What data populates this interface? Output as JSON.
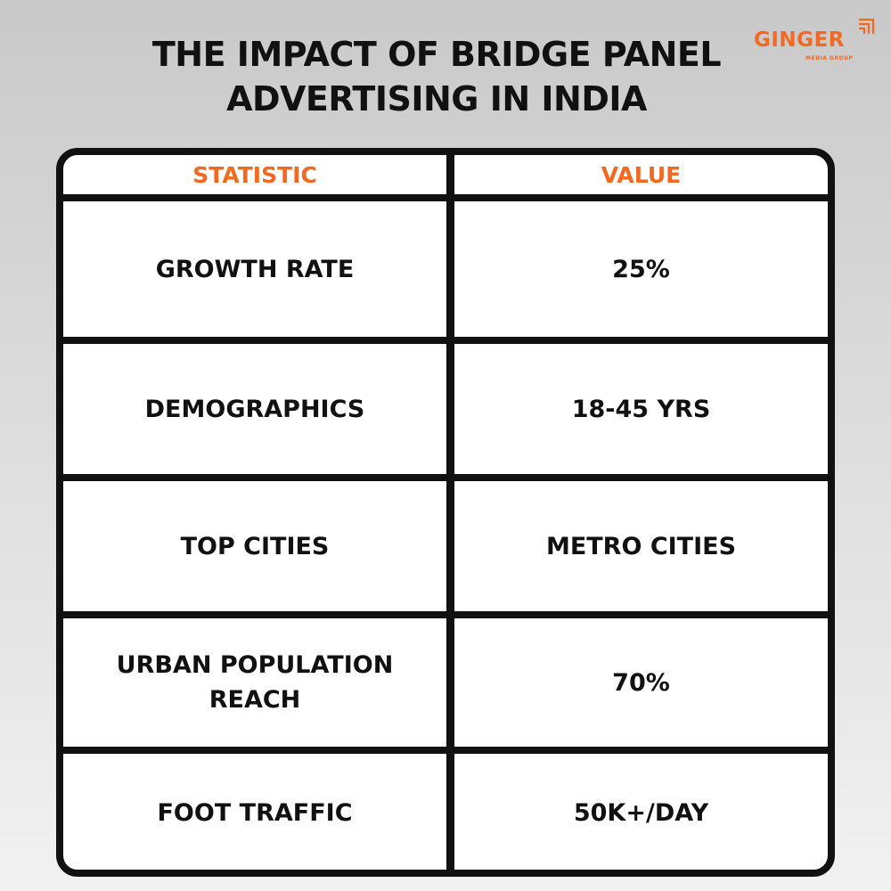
{
  "title": {
    "line1": "THE IMPACT OF BRIDGE PANEL",
    "line2": "ADVERTISING IN INDIA"
  },
  "logo": {
    "name": "GINGER",
    "tagline": "MEDIA GROUP",
    "icon": "ginger-logo-mark-icon",
    "color": "#f26a21"
  },
  "table": {
    "headers": [
      "STATISTIC",
      "VALUE"
    ],
    "header_color": "#f26a21",
    "rows": [
      {
        "statistic": "GROWTH RATE",
        "value": "25%"
      },
      {
        "statistic": "DEMOGRAPHICS",
        "value": "18-45 YRS"
      },
      {
        "statistic": "TOP CITIES",
        "value": "METRO CITIES"
      },
      {
        "statistic": "URBAN POPULATION REACH",
        "value": "70%"
      },
      {
        "statistic": "FOOT TRAFFIC",
        "value": "50K+/DAY"
      }
    ]
  }
}
